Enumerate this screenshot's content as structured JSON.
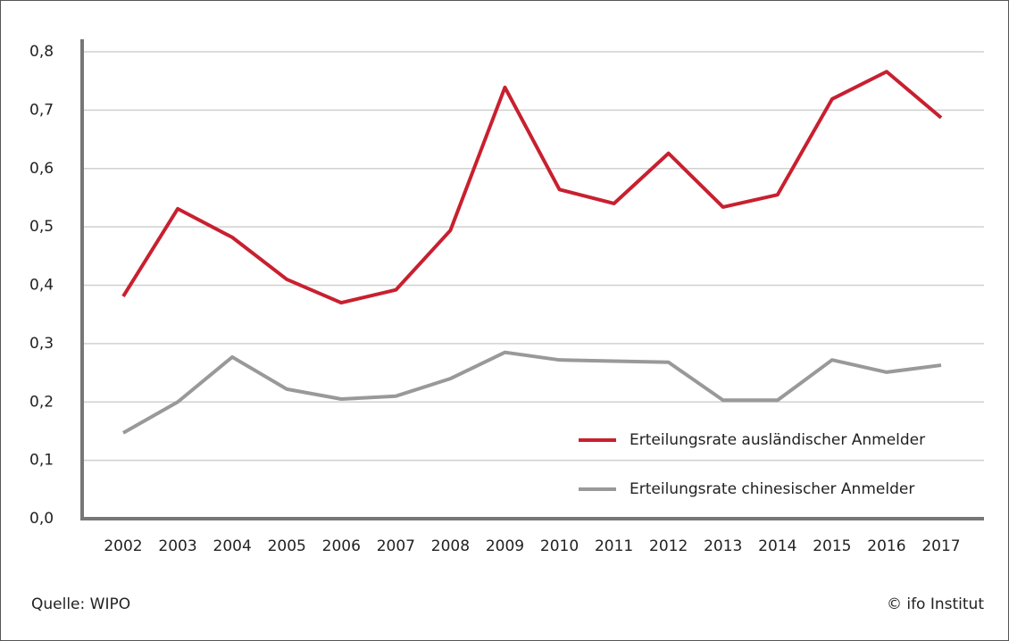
{
  "chart_data": {
    "type": "line",
    "categories": [
      "2002",
      "2003",
      "2004",
      "2005",
      "2006",
      "2007",
      "2008",
      "2009",
      "2010",
      "2011",
      "2012",
      "2013",
      "2014",
      "2015",
      "2016",
      "2017"
    ],
    "series": [
      {
        "name": "Erteilungsrate ausländischer Anmelder",
        "color": "#c8202f",
        "values": [
          0.381,
          0.531,
          0.482,
          0.41,
          0.37,
          0.392,
          0.494,
          0.739,
          0.564,
          0.54,
          0.626,
          0.534,
          0.555,
          0.719,
          0.766,
          0.687
        ]
      },
      {
        "name": "Erteilungsrate chinesischer Anmelder",
        "color": "#999999",
        "values": [
          0.147,
          0.2,
          0.277,
          0.222,
          0.205,
          0.21,
          0.24,
          0.285,
          0.272,
          0.27,
          0.268,
          0.203,
          0.203,
          0.272,
          0.251,
          0.263
        ]
      }
    ],
    "ylim": [
      0,
      0.8
    ],
    "yticks": [
      {
        "value": 0,
        "label": "0,0"
      },
      {
        "value": 0.1,
        "label": "0,1"
      },
      {
        "value": 0.2,
        "label": "0,2"
      },
      {
        "value": 0.3,
        "label": "0,3"
      },
      {
        "value": 0.4,
        "label": "0,4"
      },
      {
        "value": 0.5,
        "label": "0,5"
      },
      {
        "value": 0.6,
        "label": "0,6"
      },
      {
        "value": 0.7,
        "label": "0,7"
      },
      {
        "value": 0.8,
        "label": "0,8"
      }
    ],
    "grid": true,
    "legend": "lower right",
    "source": "Quelle: WIPO",
    "credit": "© ifo Institut"
  }
}
